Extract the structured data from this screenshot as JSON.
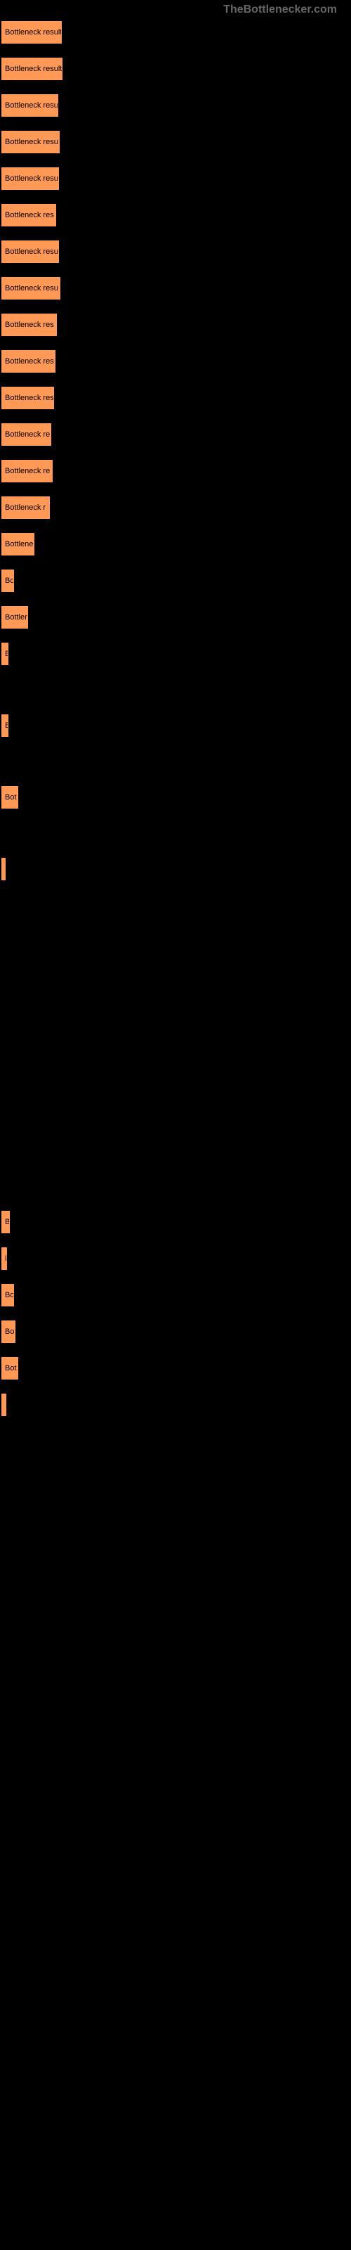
{
  "watermark": "TheBottlenecker.com",
  "chart": {
    "type": "bar",
    "background_color": "#000000",
    "bar_color": "#ff9955",
    "label_color": "#000000",
    "label_fontsize": 11,
    "bars": [
      {
        "label": "Bottleneck result",
        "width": 86
      },
      {
        "label": "Bottleneck result",
        "width": 87
      },
      {
        "label": "Bottleneck resu",
        "width": 81
      },
      {
        "label": "Bottleneck resu",
        "width": 83
      },
      {
        "label": "Bottleneck resu",
        "width": 82
      },
      {
        "label": "Bottleneck res",
        "width": 78
      },
      {
        "label": "Bottleneck resu",
        "width": 82
      },
      {
        "label": "Bottleneck resu",
        "width": 84
      },
      {
        "label": "Bottleneck res",
        "width": 79
      },
      {
        "label": "Bottleneck res",
        "width": 77
      },
      {
        "label": "Bottleneck res",
        "width": 75
      },
      {
        "label": "Bottleneck re",
        "width": 71
      },
      {
        "label": "Bottleneck re",
        "width": 73
      },
      {
        "label": "Bottleneck r",
        "width": 69
      },
      {
        "label": "Bottlene",
        "width": 47
      },
      {
        "label": "Bo",
        "width": 18
      },
      {
        "label": "Bottler",
        "width": 38
      },
      {
        "label": "B",
        "width": 10
      },
      {
        "label": "",
        "width": 0,
        "spacer": true
      },
      {
        "label": "B",
        "width": 10
      },
      {
        "label": "",
        "width": 0,
        "spacer": true
      },
      {
        "label": "Bot",
        "width": 24
      },
      {
        "label": "",
        "width": 0,
        "spacer": true
      },
      {
        "label": "",
        "width": 6
      },
      {
        "label": "",
        "width": 0,
        "bigspacer": true
      },
      {
        "label": "B",
        "width": 12
      },
      {
        "label": "B",
        "width": 8
      },
      {
        "label": "Bo",
        "width": 18
      },
      {
        "label": "Bo",
        "width": 20
      },
      {
        "label": "Bot",
        "width": 24
      },
      {
        "label": "",
        "width": 7
      }
    ]
  }
}
